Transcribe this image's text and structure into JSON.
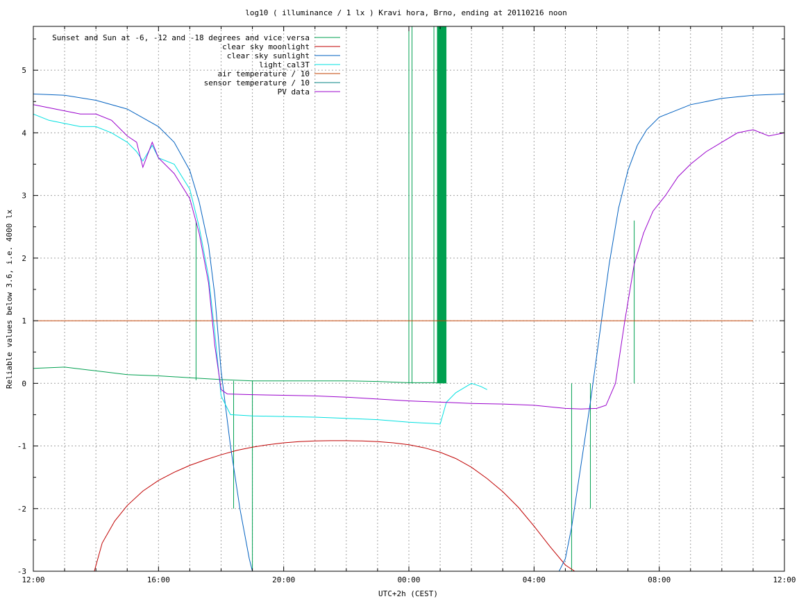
{
  "chart_data": {
    "type": "line",
    "title": "log10 ( illuminance / 1 lx ) Kravi hora, Brno, ending at 20110216 noon",
    "xlabel": "UTC+2h (CEST)",
    "ylabel": "Reliable values below 3.6, i.e. 4000 lx",
    "xlim": [
      12,
      36
    ],
    "ylim": [
      -3,
      5.7
    ],
    "x_ticks": [
      12,
      16,
      20,
      24,
      28,
      32,
      36
    ],
    "x_tick_labels": [
      "12:00",
      "16:00",
      "20:00",
      "00:00",
      "04:00",
      "08:00",
      "12:00"
    ],
    "y_ticks": [
      -3,
      -2,
      -1,
      0,
      1,
      2,
      3,
      4,
      5
    ],
    "y_tick_labels": [
      "-3",
      "-2",
      "-1",
      "0",
      "1",
      "2",
      "3",
      "4",
      "5"
    ],
    "grid": true,
    "legend_position": "top-left",
    "series": [
      {
        "name": "Sunset and Sun at -6, -12 and -18 degrees and vice versa",
        "color": "#00a050",
        "x": [
          12.0,
          13.0,
          14.0,
          15.0,
          16.0,
          17.0,
          18.0,
          19.0,
          20.0,
          21.0,
          22.0,
          23.0,
          24.0,
          25.0
        ],
        "y": [
          0.24,
          0.26,
          0.2,
          0.14,
          0.12,
          0.09,
          0.06,
          0.04,
          0.04,
          0.04,
          0.04,
          0.03,
          0.01,
          0.01
        ],
        "spikes": [
          {
            "x": 17.2,
            "y1": 0.05,
            "y2": 2.6
          },
          {
            "x": 18.4,
            "y1": -2.0,
            "y2": 0.04
          },
          {
            "x": 19.0,
            "y1": -3.0,
            "y2": 0.04
          },
          {
            "x": 24.0,
            "y1": 0.0,
            "y2": 5.7
          },
          {
            "x": 24.1,
            "y1": 0.0,
            "y2": 5.7
          },
          {
            "x": 24.8,
            "y1": 0.0,
            "y2": 5.7
          },
          {
            "x": 25.0,
            "y1": 0.0,
            "y2": 5.7
          },
          {
            "x": 29.2,
            "y1": -3.0,
            "y2": 0.0
          },
          {
            "x": 29.8,
            "y1": -2.0,
            "y2": 0.0
          },
          {
            "x": 31.2,
            "y1": 0.0,
            "y2": 2.6
          }
        ],
        "bands": [
          {
            "x1": 24.9,
            "x2": 25.2,
            "y1": 0.0,
            "y2": 5.7
          }
        ]
      },
      {
        "name": "clear sky moonlight",
        "color": "#c00000",
        "x": [
          13.95,
          14.2,
          14.6,
          15.0,
          15.5,
          16.0,
          16.5,
          17.0,
          17.5,
          18.0,
          18.5,
          19.0,
          19.5,
          20.0,
          20.5,
          21.0,
          21.5,
          22.0,
          22.5,
          23.0,
          23.5,
          24.0,
          24.5,
          25.0,
          25.5,
          26.0,
          26.5,
          27.0,
          27.5,
          28.0,
          28.5,
          29.0,
          29.3
        ],
        "y": [
          -3.0,
          -2.55,
          -2.2,
          -1.95,
          -1.72,
          -1.55,
          -1.42,
          -1.31,
          -1.22,
          -1.14,
          -1.07,
          -1.02,
          -0.98,
          -0.95,
          -0.93,
          -0.92,
          -0.915,
          -0.915,
          -0.92,
          -0.93,
          -0.95,
          -0.98,
          -1.03,
          -1.1,
          -1.2,
          -1.34,
          -1.52,
          -1.73,
          -1.98,
          -2.28,
          -2.6,
          -2.9,
          -3.0
        ]
      },
      {
        "name": "clear sky sunlight",
        "color": "#0060c0",
        "x": [
          12.0,
          13.0,
          14.0,
          15.0,
          16.0,
          16.5,
          17.0,
          17.3,
          17.6,
          17.8,
          18.0,
          18.3,
          18.6,
          18.9,
          19.0,
          28.8,
          29.0,
          29.2,
          29.5,
          29.8,
          30.1,
          30.4,
          30.7,
          31.0,
          31.3,
          31.6,
          32.0,
          33.0,
          34.0,
          35.0,
          36.0
        ],
        "y": [
          4.62,
          4.6,
          4.52,
          4.38,
          4.1,
          3.85,
          3.4,
          2.9,
          2.2,
          1.4,
          0.2,
          -1.0,
          -2.0,
          -2.8,
          -3.0,
          -3.0,
          -2.8,
          -2.3,
          -1.3,
          -0.3,
          0.8,
          1.9,
          2.8,
          3.4,
          3.8,
          4.05,
          4.25,
          4.45,
          4.55,
          4.6,
          4.62
        ]
      },
      {
        "name": "light_cal3T",
        "color": "#00e0e0",
        "x": [
          12.0,
          12.5,
          13.0,
          13.5,
          14.0,
          14.5,
          15.0,
          15.3,
          15.5,
          15.8,
          16.0,
          16.5,
          17.0,
          17.3,
          17.6,
          17.8,
          18.0,
          18.3,
          19.0,
          20.0,
          21.0,
          22.0,
          23.0,
          24.0,
          24.4,
          24.8,
          25.0,
          25.2,
          25.5,
          26.0,
          26.3,
          26.5
        ],
        "y": [
          4.3,
          4.2,
          4.15,
          4.1,
          4.1,
          4.0,
          3.85,
          3.7,
          3.55,
          3.8,
          3.6,
          3.5,
          3.1,
          2.5,
          1.7,
          0.8,
          -0.2,
          -0.5,
          -0.52,
          -0.53,
          -0.54,
          -0.56,
          -0.58,
          -0.62,
          -0.63,
          -0.64,
          -0.65,
          -0.3,
          -0.15,
          0.0,
          -0.05,
          -0.1
        ]
      },
      {
        "name": "air temperature / 10",
        "color": "#c04000",
        "x": [
          12.0,
          35.0
        ],
        "y": [
          1.0,
          1.0
        ]
      },
      {
        "name": "sensor temperature / 10",
        "color": "#008080",
        "x": [],
        "y": []
      },
      {
        "name": "PV data",
        "color": "#9900cc",
        "x": [
          12.0,
          12.5,
          13.0,
          13.5,
          14.0,
          14.5,
          15.0,
          15.3,
          15.5,
          15.8,
          16.0,
          16.5,
          17.0,
          17.3,
          17.6,
          17.8,
          18.0,
          18.2,
          19.0,
          20.0,
          21.0,
          22.0,
          23.0,
          24.0,
          25.0,
          26.0,
          27.0,
          28.0,
          29.0,
          29.5,
          30.0,
          30.3,
          30.6,
          30.9,
          31.2,
          31.5,
          31.8,
          32.2,
          32.6,
          33.0,
          33.5,
          34.0,
          34.5,
          35.0,
          35.5,
          36.0
        ],
        "y": [
          4.45,
          4.4,
          4.35,
          4.3,
          4.3,
          4.2,
          3.95,
          3.85,
          3.45,
          3.85,
          3.6,
          3.35,
          2.95,
          2.4,
          1.6,
          0.6,
          -0.1,
          -0.17,
          -0.18,
          -0.19,
          -0.2,
          -0.22,
          -0.25,
          -0.28,
          -0.3,
          -0.32,
          -0.33,
          -0.35,
          -0.4,
          -0.41,
          -0.4,
          -0.35,
          0.0,
          1.0,
          1.9,
          2.4,
          2.75,
          3.0,
          3.3,
          3.5,
          3.7,
          3.85,
          4.0,
          4.05,
          3.95,
          4.0
        ]
      }
    ]
  }
}
